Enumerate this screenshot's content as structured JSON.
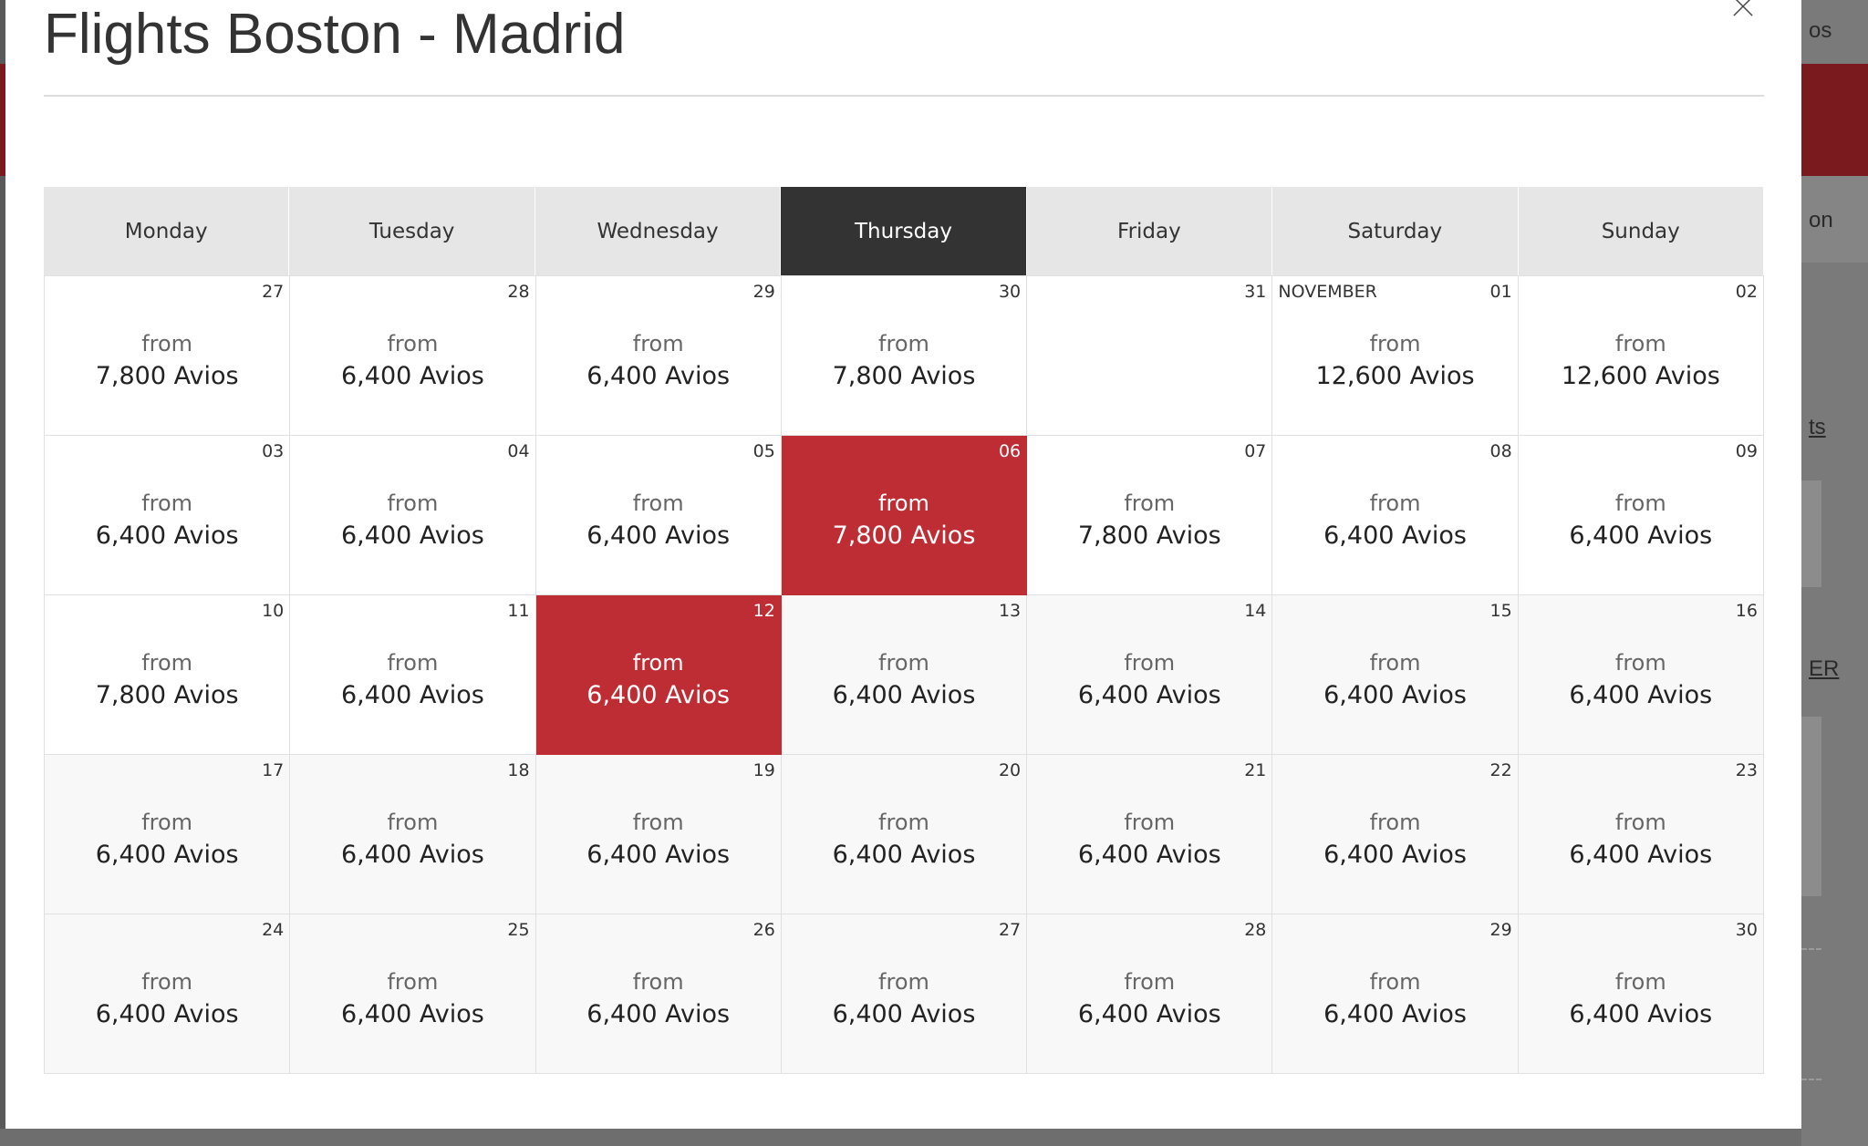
{
  "dialog": {
    "title": "Flights Boston - Madrid",
    "close_icon": "close-icon"
  },
  "background_page": {
    "fragments": [
      "os",
      "on",
      "ts",
      "ER"
    ]
  },
  "calendar": {
    "days": [
      "Monday",
      "Tuesday",
      "Wednesday",
      "Thursday",
      "Friday",
      "Saturday",
      "Sunday"
    ],
    "active_day": "Thursday",
    "from_label": "from",
    "weeks": [
      [
        {
          "date": "27",
          "price": "7,800 Avios"
        },
        {
          "date": "28",
          "price": "6,400 Avios"
        },
        {
          "date": "29",
          "price": "6,400 Avios"
        },
        {
          "date": "30",
          "price": "7,800 Avios"
        },
        {
          "date": "31",
          "price": ""
        },
        {
          "date": "01",
          "month": "NOVEMBER",
          "price": "12,600 Avios"
        },
        {
          "date": "02",
          "price": "12,600 Avios"
        }
      ],
      [
        {
          "date": "03",
          "price": "6,400 Avios"
        },
        {
          "date": "04",
          "price": "6,400 Avios"
        },
        {
          "date": "05",
          "price": "6,400 Avios"
        },
        {
          "date": "06",
          "price": "7,800 Avios",
          "selected": true
        },
        {
          "date": "07",
          "price": "7,800 Avios"
        },
        {
          "date": "08",
          "price": "6,400 Avios"
        },
        {
          "date": "09",
          "price": "6,400 Avios"
        }
      ],
      [
        {
          "date": "10",
          "price": "7,800 Avios"
        },
        {
          "date": "11",
          "price": "6,400 Avios"
        },
        {
          "date": "12",
          "price": "6,400 Avios",
          "selected": true
        },
        {
          "date": "13",
          "price": "6,400 Avios",
          "shade": "light"
        },
        {
          "date": "14",
          "price": "6,400 Avios",
          "shade": "light"
        },
        {
          "date": "15",
          "price": "6,400 Avios",
          "shade": "light"
        },
        {
          "date": "16",
          "price": "6,400 Avios",
          "shade": "light"
        }
      ],
      [
        {
          "date": "17",
          "price": "6,400 Avios",
          "shade": "light"
        },
        {
          "date": "18",
          "price": "6,400 Avios",
          "shade": "light"
        },
        {
          "date": "19",
          "price": "6,400 Avios",
          "shade": "light"
        },
        {
          "date": "20",
          "price": "6,400 Avios",
          "shade": "light"
        },
        {
          "date": "21",
          "price": "6,400 Avios",
          "shade": "light"
        },
        {
          "date": "22",
          "price": "6,400 Avios",
          "shade": "light"
        },
        {
          "date": "23",
          "price": "6,400 Avios",
          "shade": "light"
        }
      ],
      [
        {
          "date": "24",
          "price": "6,400 Avios",
          "shade": "light"
        },
        {
          "date": "25",
          "price": "6,400 Avios",
          "shade": "light"
        },
        {
          "date": "26",
          "price": "6,400 Avios",
          "shade": "light"
        },
        {
          "date": "27",
          "price": "6,400 Avios",
          "shade": "light"
        },
        {
          "date": "28",
          "price": "6,400 Avios",
          "shade": "light"
        },
        {
          "date": "29",
          "price": "6,400 Avios",
          "shade": "light"
        },
        {
          "date": "30",
          "price": "6,400 Avios",
          "shade": "light"
        }
      ]
    ]
  },
  "colors": {
    "selected": "#bf2d34",
    "active_header": "#333333",
    "header": "#e6e6e6"
  }
}
